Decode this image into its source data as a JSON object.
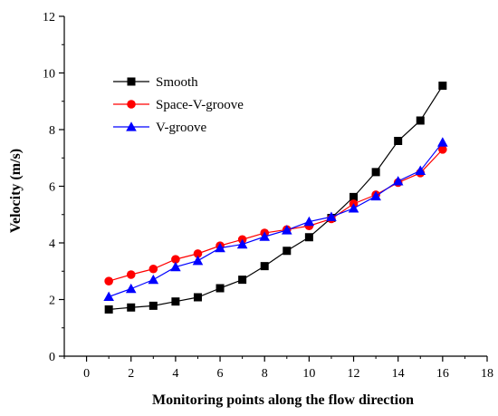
{
  "chart_data": {
    "type": "line",
    "title": "",
    "xlabel": "Monitoring points along the flow direction",
    "ylabel": "Velocity (m/s)",
    "xlim": [
      -1,
      18
    ],
    "ylim": [
      0,
      12
    ],
    "xticks": [
      0,
      2,
      4,
      6,
      8,
      10,
      12,
      14,
      16,
      18
    ],
    "yticks": [
      0,
      2,
      4,
      6,
      8,
      10,
      12
    ],
    "grid": false,
    "legend_position": "top-left",
    "x": [
      1,
      2,
      3,
      4,
      5,
      6,
      7,
      8,
      9,
      10,
      11,
      12,
      13,
      14,
      15,
      16
    ],
    "series": [
      {
        "name": "Smooth",
        "color": "#000000",
        "marker": "square",
        "values": [
          1.65,
          1.72,
          1.78,
          1.93,
          2.08,
          2.4,
          2.7,
          3.18,
          3.72,
          4.2,
          4.88,
          5.62,
          6.5,
          7.6,
          8.32,
          9.55
        ]
      },
      {
        "name": "Space-V-groove",
        "color": "#ff0000",
        "marker": "circle",
        "values": [
          2.65,
          2.88,
          3.08,
          3.42,
          3.62,
          3.9,
          4.12,
          4.35,
          4.47,
          4.6,
          4.85,
          5.38,
          5.7,
          6.13,
          6.47,
          7.3
        ]
      },
      {
        "name": "V-groove",
        "color": "#0000ff",
        "marker": "triangle",
        "values": [
          2.1,
          2.38,
          2.7,
          3.15,
          3.37,
          3.82,
          3.95,
          4.22,
          4.45,
          4.75,
          4.92,
          5.22,
          5.65,
          6.18,
          6.55,
          7.55
        ]
      }
    ]
  }
}
